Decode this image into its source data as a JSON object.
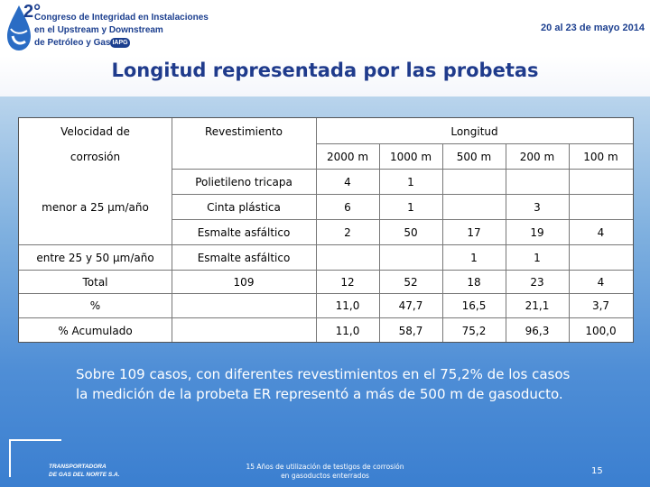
{
  "header": {
    "logo_number": "2°",
    "logo_lines": [
      "Congreso de Integridad en Instalaciones",
      "en el Upstream y Downstream",
      "de Petróleo y Gas"
    ],
    "logo_badge": "IAPG",
    "date": "20 al 23 de mayo 2014"
  },
  "title": "Longitud representada por las probetas",
  "table": {
    "head": {
      "velocidad_1": "Velocidad de",
      "velocidad_2": "corrosión",
      "revestimiento": "Revestimiento",
      "longitud": "Longitud",
      "lengths": [
        "2000 m",
        "1000 m",
        "500 m",
        "200 m",
        "100 m"
      ]
    },
    "velocidad_groups": [
      "menor a 25 µm/año",
      "entre 25 y 50 µm/año"
    ],
    "rows": [
      {
        "revestimiento": "Polietileno tricapa",
        "values": [
          "4",
          "1",
          "",
          "",
          ""
        ]
      },
      {
        "revestimiento": "Cinta plástica",
        "values": [
          "6",
          "1",
          "",
          "3",
          ""
        ]
      },
      {
        "revestimiento": "Esmalte asfáltico",
        "values": [
          "2",
          "50",
          "17",
          "19",
          "4"
        ]
      },
      {
        "revestimiento": "Esmalte asfáltico",
        "values": [
          "",
          "",
          "1",
          "1",
          ""
        ]
      }
    ],
    "total": {
      "label": "Total",
      "count": "109",
      "values": [
        "12",
        "52",
        "18",
        "23",
        "4"
      ]
    },
    "percent": {
      "label": "%",
      "values": [
        "11,0",
        "47,7",
        "16,5",
        "21,1",
        "3,7"
      ]
    },
    "cumulative": {
      "label": "% Acumulado",
      "values": [
        "11,0",
        "58,7",
        "75,2",
        "96,3",
        "100,0"
      ]
    }
  },
  "summary": "Sobre 109 casos, con diferentes revestimientos en el 75,2% de los casos la medición de la probeta ER representó a más de 500 m de gasoducto.",
  "footer": {
    "logo_line1": "TRANSPORTADORA",
    "logo_line2": "DE GAS DEL NORTE S.A.",
    "note_line1": "15 Años de utilización de testigos de corrosión",
    "note_line2": "en gasoductos enterrados",
    "page": "15"
  },
  "colors": {
    "brand": "#1c3f8f",
    "title": "#1f3b8c",
    "background_top": "#b9d4ec",
    "background_bottom": "#3b7fd0"
  }
}
